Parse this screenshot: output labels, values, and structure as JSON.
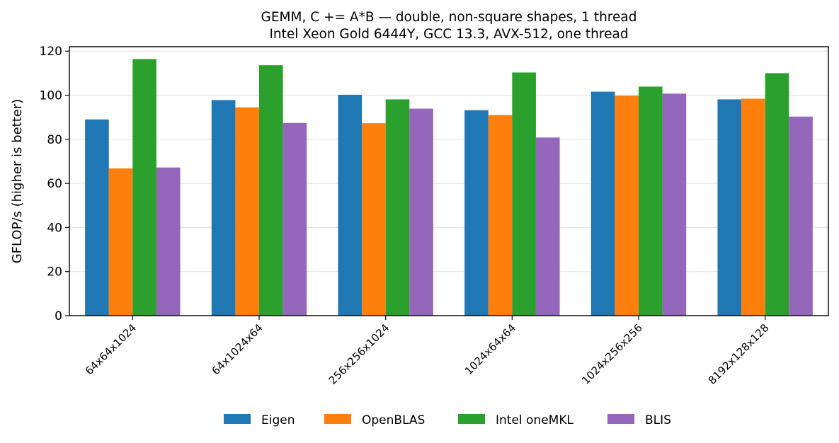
{
  "chart_data": {
    "type": "bar",
    "title": "GEMM, C += A*B — double, non-square shapes, 1 thread",
    "subtitle": "Intel Xeon Gold 6444Y, GCC 13.3, AVX-512, one thread",
    "xlabel": "",
    "ylabel": "GFLOP/s (higher is better)",
    "ylim": [
      0,
      122
    ],
    "yticks": [
      0,
      20,
      40,
      60,
      80,
      100,
      120
    ],
    "grid": "horizontal",
    "legend_position": "bottom-center",
    "categories": [
      "64x64x1024",
      "64x1024x64",
      "256x256x1024",
      "1024x64x64",
      "1024x256x256",
      "8192x128x128"
    ],
    "series": [
      {
        "name": "Eigen",
        "color": "#1f77b4",
        "values": [
          89.0,
          97.8,
          100.2,
          93.2,
          101.6,
          98.1
        ]
      },
      {
        "name": "OpenBLAS",
        "color": "#ff7f0e",
        "values": [
          66.8,
          94.5,
          87.3,
          91.0,
          99.8,
          98.4
        ]
      },
      {
        "name": "Intel oneMKL",
        "color": "#2ca02c",
        "values": [
          116.4,
          113.6,
          98.1,
          110.3,
          103.9,
          110.0
        ]
      },
      {
        "name": "BLIS",
        "color": "#9467bd",
        "values": [
          67.2,
          87.4,
          93.9,
          80.8,
          100.7,
          90.3
        ]
      }
    ]
  }
}
